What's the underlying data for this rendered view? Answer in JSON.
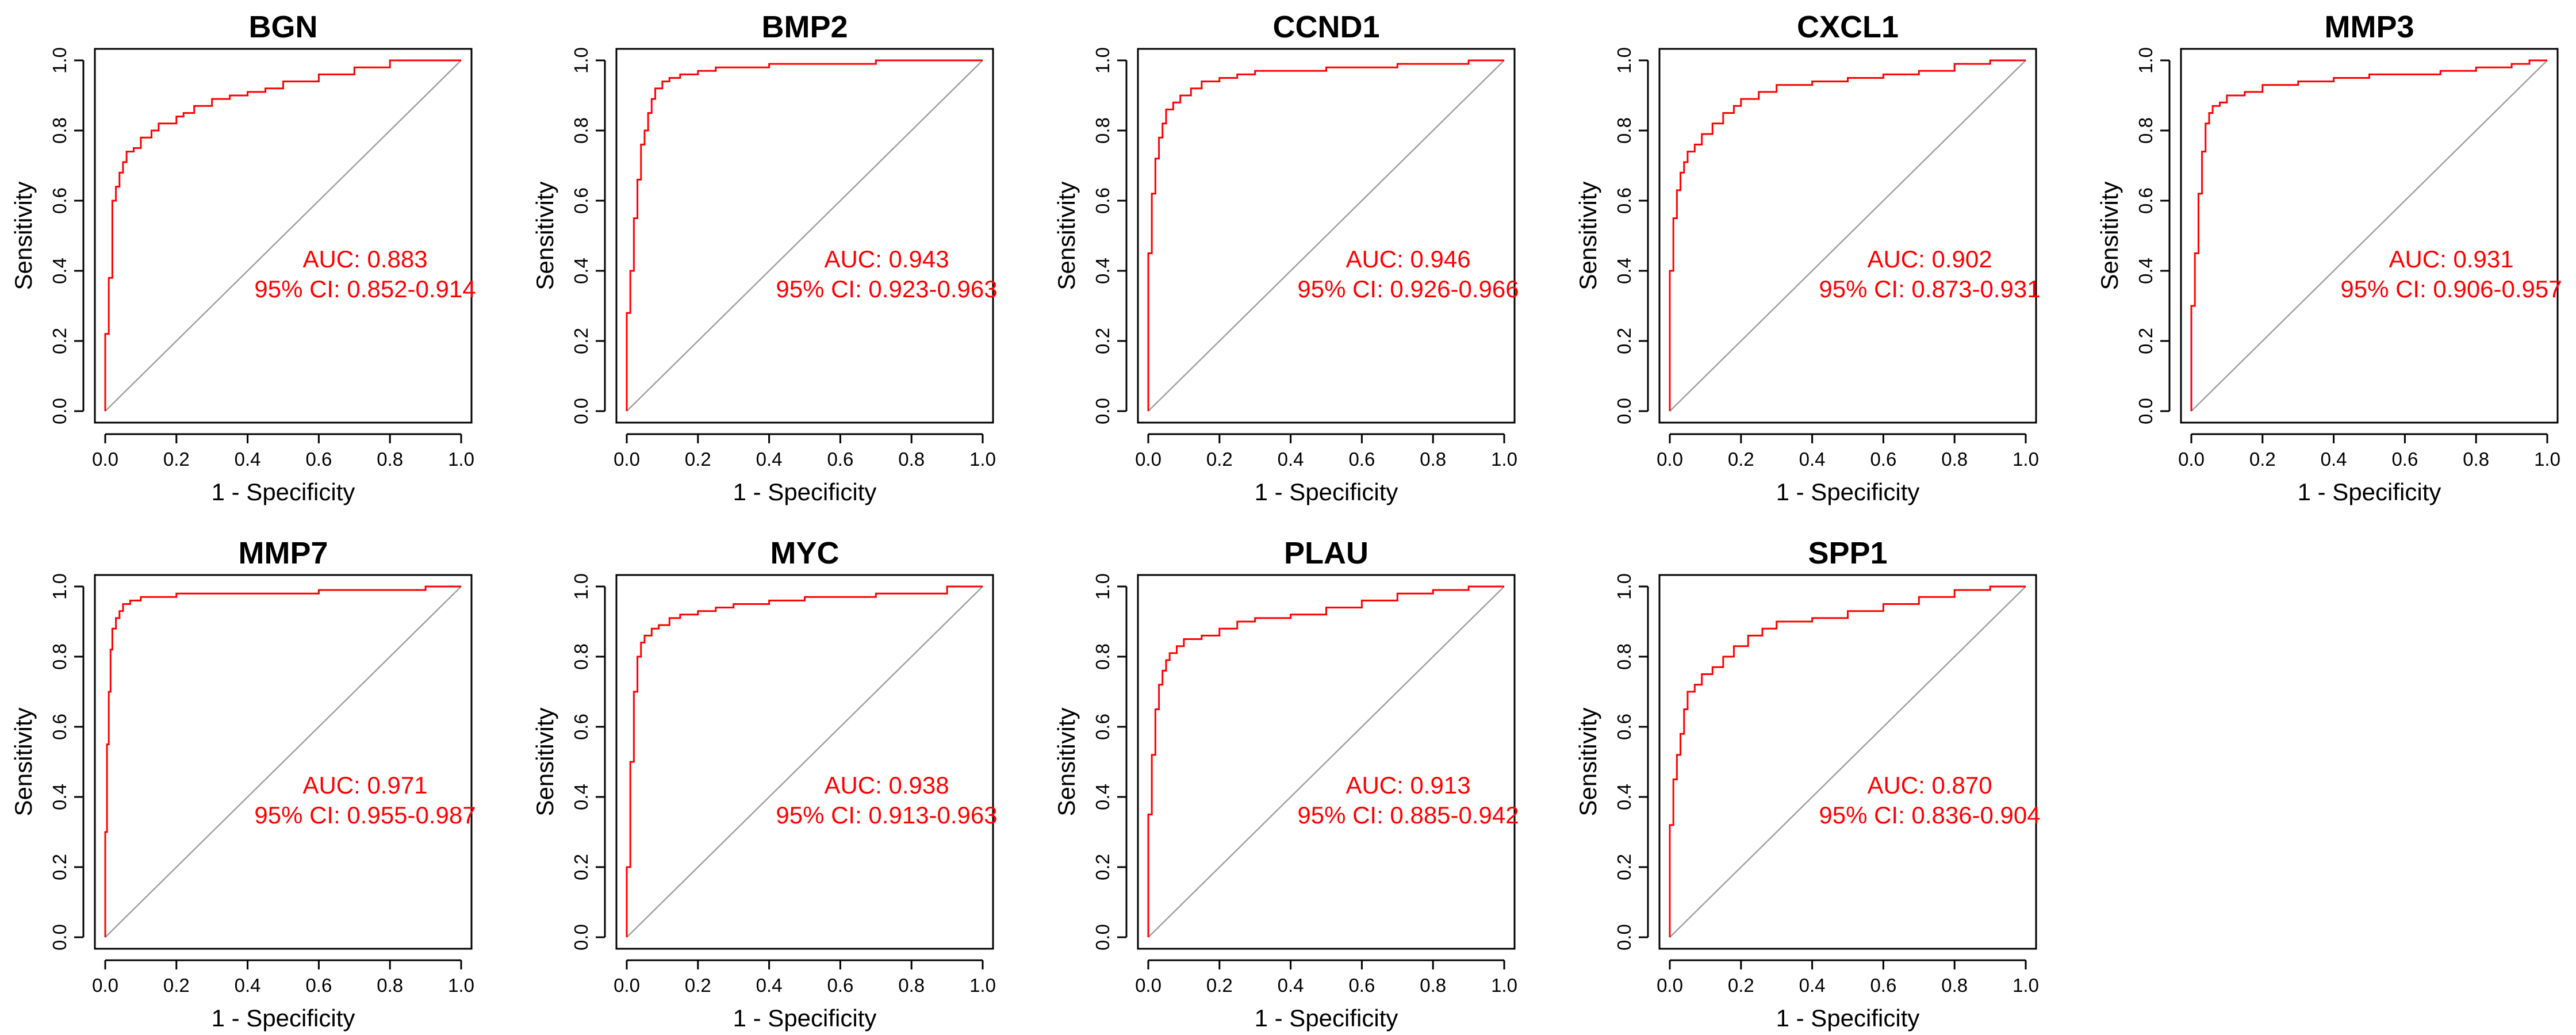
{
  "colors": {
    "roc_curve": "#ff0000",
    "diagonal": "#a0a0a0",
    "annotation": "#ff0000",
    "axes": "#000000"
  },
  "layout": {
    "rows": 2,
    "cols": 5
  },
  "chart_data": [
    {
      "type": "line",
      "title": "BGN",
      "xlabel": "1 - Specificity",
      "ylabel": "Sensitivity",
      "xlim": [
        0,
        1
      ],
      "ylim": [
        0,
        1
      ],
      "x_ticks": [
        "0.0",
        "0.2",
        "0.4",
        "0.6",
        "0.8",
        "1.0"
      ],
      "y_ticks": [
        "0.0",
        "0.2",
        "0.4",
        "0.6",
        "0.8",
        "1.0"
      ],
      "auc_text": "AUC: 0.883",
      "ci_text": "95% CI: 0.852-0.914",
      "series": [
        {
          "x": [
            0,
            0.01,
            0.02,
            0.02,
            0.03,
            0.04,
            0.05,
            0.06,
            0.08,
            0.1,
            0.13,
            0.15,
            0.17,
            0.2,
            0.22,
            0.25,
            0.3,
            0.35,
            0.4,
            0.45,
            0.5,
            0.6,
            0.7,
            0.8,
            0.9,
            1.0
          ],
          "y": [
            0,
            0.22,
            0.38,
            0.52,
            0.6,
            0.64,
            0.68,
            0.71,
            0.74,
            0.75,
            0.78,
            0.8,
            0.82,
            0.82,
            0.84,
            0.85,
            0.87,
            0.89,
            0.9,
            0.91,
            0.92,
            0.94,
            0.96,
            0.98,
            1.0,
            1.0
          ]
        }
      ]
    },
    {
      "type": "line",
      "title": "BMP2",
      "xlabel": "1 - Specificity",
      "ylabel": "Sensitivity",
      "xlim": [
        0,
        1
      ],
      "ylim": [
        0,
        1
      ],
      "x_ticks": [
        "0.0",
        "0.2",
        "0.4",
        "0.6",
        "0.8",
        "1.0"
      ],
      "y_ticks": [
        "0.0",
        "0.2",
        "0.4",
        "0.6",
        "0.8",
        "1.0"
      ],
      "auc_text": "AUC: 0.943",
      "ci_text": "95% CI: 0.923-0.963",
      "series": [
        {
          "x": [
            0,
            0.01,
            0.02,
            0.03,
            0.04,
            0.05,
            0.06,
            0.07,
            0.08,
            0.1,
            0.12,
            0.15,
            0.2,
            0.25,
            0.3,
            0.4,
            0.5,
            0.6,
            0.7,
            0.8,
            0.9,
            1.0
          ],
          "y": [
            0,
            0.28,
            0.4,
            0.55,
            0.66,
            0.76,
            0.8,
            0.85,
            0.89,
            0.92,
            0.94,
            0.95,
            0.96,
            0.97,
            0.98,
            0.98,
            0.99,
            0.99,
            0.99,
            1.0,
            1.0,
            1.0
          ]
        }
      ]
    },
    {
      "type": "line",
      "title": "CCND1",
      "xlabel": "1 - Specificity",
      "ylabel": "Sensitivity",
      "xlim": [
        0,
        1
      ],
      "ylim": [
        0,
        1
      ],
      "x_ticks": [
        "0.0",
        "0.2",
        "0.4",
        "0.6",
        "0.8",
        "1.0"
      ],
      "y_ticks": [
        "0.0",
        "0.2",
        "0.4",
        "0.6",
        "0.8",
        "1.0"
      ],
      "auc_text": "AUC: 0.946",
      "ci_text": "95% CI: 0.926-0.966",
      "series": [
        {
          "x": [
            0,
            0.01,
            0.02,
            0.03,
            0.04,
            0.05,
            0.07,
            0.09,
            0.12,
            0.15,
            0.2,
            0.25,
            0.3,
            0.4,
            0.5,
            0.6,
            0.7,
            0.8,
            0.9,
            1.0
          ],
          "y": [
            0,
            0.45,
            0.62,
            0.72,
            0.78,
            0.82,
            0.86,
            0.88,
            0.9,
            0.92,
            0.94,
            0.95,
            0.96,
            0.97,
            0.97,
            0.98,
            0.98,
            0.99,
            0.99,
            1.0
          ]
        }
      ]
    },
    {
      "type": "line",
      "title": "CXCL1",
      "xlabel": "1 - Specificity",
      "ylabel": "Sensitivity",
      "xlim": [
        0,
        1
      ],
      "ylim": [
        0,
        1
      ],
      "x_ticks": [
        "0.0",
        "0.2",
        "0.4",
        "0.6",
        "0.8",
        "1.0"
      ],
      "y_ticks": [
        "0.0",
        "0.2",
        "0.4",
        "0.6",
        "0.8",
        "1.0"
      ],
      "auc_text": "AUC: 0.902",
      "ci_text": "95% CI: 0.873-0.931",
      "series": [
        {
          "x": [
            0,
            0.01,
            0.02,
            0.03,
            0.04,
            0.05,
            0.07,
            0.09,
            0.12,
            0.15,
            0.18,
            0.2,
            0.25,
            0.3,
            0.4,
            0.5,
            0.6,
            0.7,
            0.8,
            0.9,
            1.0
          ],
          "y": [
            0,
            0.4,
            0.55,
            0.63,
            0.68,
            0.71,
            0.74,
            0.76,
            0.79,
            0.82,
            0.85,
            0.87,
            0.89,
            0.91,
            0.93,
            0.94,
            0.95,
            0.96,
            0.97,
            0.99,
            1.0
          ]
        }
      ]
    },
    {
      "type": "line",
      "title": "MMP3",
      "xlabel": "1 - Specificity",
      "ylabel": "Sensitivity",
      "xlim": [
        0,
        1
      ],
      "ylim": [
        0,
        1
      ],
      "x_ticks": [
        "0.0",
        "0.2",
        "0.4",
        "0.6",
        "0.8",
        "1.0"
      ],
      "y_ticks": [
        "0.0",
        "0.2",
        "0.4",
        "0.6",
        "0.8",
        "1.0"
      ],
      "auc_text": "AUC: 0.931",
      "ci_text": "95% CI: 0.906-0.957",
      "series": [
        {
          "x": [
            0,
            0.01,
            0.02,
            0.03,
            0.04,
            0.05,
            0.06,
            0.08,
            0.1,
            0.15,
            0.2,
            0.3,
            0.4,
            0.5,
            0.6,
            0.7,
            0.8,
            0.9,
            0.95,
            1.0
          ],
          "y": [
            0,
            0.3,
            0.45,
            0.62,
            0.74,
            0.82,
            0.85,
            0.87,
            0.88,
            0.9,
            0.91,
            0.93,
            0.94,
            0.95,
            0.96,
            0.96,
            0.97,
            0.98,
            0.99,
            1.0
          ]
        }
      ]
    },
    {
      "type": "line",
      "title": "MMP7",
      "xlabel": "1 - Specificity",
      "ylabel": "Sensitivity",
      "xlim": [
        0,
        1
      ],
      "ylim": [
        0,
        1
      ],
      "x_ticks": [
        "0.0",
        "0.2",
        "0.4",
        "0.6",
        "0.8",
        "1.0"
      ],
      "y_ticks": [
        "0.0",
        "0.2",
        "0.4",
        "0.6",
        "0.8",
        "1.0"
      ],
      "auc_text": "AUC: 0.971",
      "ci_text": "95% CI: 0.955-0.987",
      "series": [
        {
          "x": [
            0,
            0.005,
            0.01,
            0.015,
            0.02,
            0.03,
            0.04,
            0.05,
            0.07,
            0.1,
            0.15,
            0.2,
            0.3,
            0.4,
            0.5,
            0.6,
            0.7,
            0.8,
            0.9,
            1.0
          ],
          "y": [
            0,
            0.3,
            0.55,
            0.7,
            0.82,
            0.88,
            0.91,
            0.93,
            0.95,
            0.96,
            0.97,
            0.97,
            0.98,
            0.98,
            0.98,
            0.98,
            0.99,
            0.99,
            0.99,
            1.0
          ]
        }
      ]
    },
    {
      "type": "line",
      "title": "MYC",
      "xlabel": "1 - Specificity",
      "ylabel": "Sensitivity",
      "xlim": [
        0,
        1
      ],
      "ylim": [
        0,
        1
      ],
      "x_ticks": [
        "0.0",
        "0.2",
        "0.4",
        "0.6",
        "0.8",
        "1.0"
      ],
      "y_ticks": [
        "0.0",
        "0.2",
        "0.4",
        "0.6",
        "0.8",
        "1.0"
      ],
      "auc_text": "AUC: 0.938",
      "ci_text": "95% CI: 0.913-0.963",
      "series": [
        {
          "x": [
            0,
            0.01,
            0.02,
            0.03,
            0.04,
            0.05,
            0.07,
            0.09,
            0.12,
            0.15,
            0.2,
            0.25,
            0.3,
            0.4,
            0.5,
            0.6,
            0.7,
            0.8,
            0.9,
            1.0
          ],
          "y": [
            0,
            0.2,
            0.5,
            0.7,
            0.8,
            0.84,
            0.86,
            0.88,
            0.89,
            0.91,
            0.92,
            0.93,
            0.94,
            0.95,
            0.96,
            0.97,
            0.97,
            0.98,
            0.98,
            1.0
          ]
        }
      ]
    },
    {
      "type": "line",
      "title": "PLAU",
      "xlabel": "1 - Specificity",
      "ylabel": "Sensitivity",
      "xlim": [
        0,
        1
      ],
      "ylim": [
        0,
        1
      ],
      "x_ticks": [
        "0.0",
        "0.2",
        "0.4",
        "0.6",
        "0.8",
        "1.0"
      ],
      "y_ticks": [
        "0.0",
        "0.2",
        "0.4",
        "0.6",
        "0.8",
        "1.0"
      ],
      "auc_text": "AUC: 0.913",
      "ci_text": "95% CI: 0.885-0.942",
      "series": [
        {
          "x": [
            0,
            0.01,
            0.02,
            0.03,
            0.04,
            0.05,
            0.06,
            0.08,
            0.1,
            0.15,
            0.2,
            0.25,
            0.3,
            0.4,
            0.5,
            0.6,
            0.7,
            0.8,
            0.9,
            1.0
          ],
          "y": [
            0,
            0.35,
            0.52,
            0.65,
            0.72,
            0.76,
            0.79,
            0.81,
            0.83,
            0.85,
            0.86,
            0.88,
            0.9,
            0.91,
            0.92,
            0.94,
            0.96,
            0.98,
            0.99,
            1.0
          ]
        }
      ]
    },
    {
      "type": "line",
      "title": "SPP1",
      "xlabel": "1 - Specificity",
      "ylabel": "Sensitivity",
      "xlim": [
        0,
        1
      ],
      "ylim": [
        0,
        1
      ],
      "x_ticks": [
        "0.0",
        "0.2",
        "0.4",
        "0.6",
        "0.8",
        "1.0"
      ],
      "y_ticks": [
        "0.0",
        "0.2",
        "0.4",
        "0.6",
        "0.8",
        "1.0"
      ],
      "auc_text": "AUC: 0.870",
      "ci_text": "95% CI: 0.836-0.904",
      "series": [
        {
          "x": [
            0,
            0.01,
            0.02,
            0.03,
            0.04,
            0.05,
            0.07,
            0.09,
            0.12,
            0.15,
            0.18,
            0.22,
            0.26,
            0.3,
            0.4,
            0.5,
            0.6,
            0.7,
            0.8,
            0.9,
            1.0
          ],
          "y": [
            0,
            0.32,
            0.45,
            0.52,
            0.58,
            0.65,
            0.7,
            0.72,
            0.75,
            0.77,
            0.8,
            0.83,
            0.86,
            0.88,
            0.9,
            0.91,
            0.93,
            0.95,
            0.97,
            0.99,
            1.0
          ]
        }
      ]
    }
  ]
}
